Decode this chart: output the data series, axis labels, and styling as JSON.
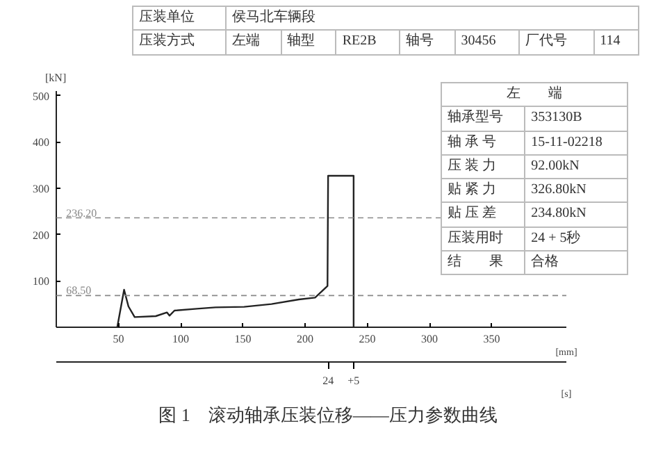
{
  "chart_data": {
    "type": "line",
    "ylabel": "[kN]",
    "xlabel": "[mm]",
    "x2label": "[s]",
    "xlim": [
      0,
      410
    ],
    "xticks": [
      50,
      100,
      150,
      200,
      250,
      300,
      350
    ],
    "ylim": [
      0,
      510
    ],
    "yticks": [
      100,
      200,
      300,
      400,
      500
    ],
    "grid": false,
    "marker": "none",
    "line_style": "solid",
    "series": [
      {
        "color": "#222222",
        "x": [
          49,
          54.5,
          58,
          63,
          80,
          89,
          91,
          95,
          113,
          128,
          151,
          173,
          195,
          208,
          218,
          218.5,
          239,
          239
        ],
        "values": [
          0,
          81,
          45,
          22,
          24,
          32,
          25,
          36,
          40,
          43,
          44,
          50,
          60,
          64,
          89,
          327,
          327,
          0
        ]
      }
    ],
    "ref_lines": [
      {
        "axis": "y",
        "value": 236.2,
        "label": "236.20",
        "color": "#888888",
        "line_style": "dashed"
      },
      {
        "axis": "y",
        "value": 68.5,
        "label": "68.50",
        "color": "#888888",
        "line_style": "dashed"
      }
    ],
    "annotations": [
      "压装单位",
      "侯马北车辆段",
      "压装方式",
      "左端",
      "轴型",
      "RE2B",
      "轴号",
      "30456",
      "厂代号",
      "114",
      "左　　端",
      "轴承型号",
      "353130B",
      "轴 承 号",
      "15-11-02218",
      "压 装 力",
      "92.00kN",
      "贴 紧 力",
      "326.80kN",
      "贴 压 差",
      "234.80kN",
      "压装用时",
      "24 + 5秒",
      "结　　果",
      "合格",
      "图 1　滚动轴承压装位移——压力参数曲线",
      "24",
      "+5"
    ]
  }
}
